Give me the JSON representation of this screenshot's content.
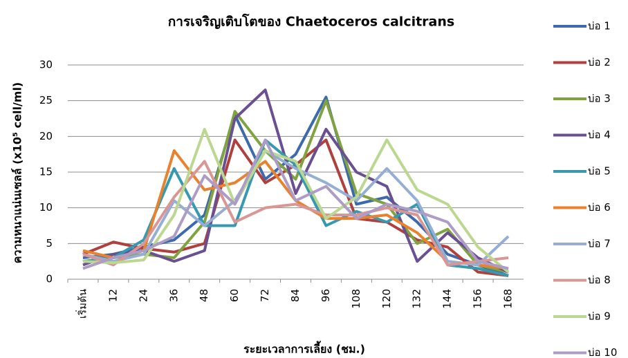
{
  "chart_data": {
    "type": "line",
    "title": "การเจริญเติบโตของ Chaetoceros calcitrans",
    "x_label": "ระยะเวลาการเลี้ยง (ชม.)",
    "y_label": "ความหนาแน่นเซลล์ (x10⁵ cell/ml)",
    "categories": [
      "เริ่มต้น",
      "12",
      "24",
      "36",
      "48",
      "60",
      "72",
      "84",
      "96",
      "108",
      "120",
      "132",
      "144",
      "156",
      "168"
    ],
    "ylim": [
      0,
      30
    ],
    "yticks": [
      0,
      5,
      10,
      15,
      20,
      25,
      30
    ],
    "grid": true,
    "legend": "right",
    "series": [
      {
        "name": "บ่อ 1",
        "color": "#3d6aad",
        "values": [
          3,
          3.5,
          4.5,
          5.5,
          9,
          23,
          14,
          17.5,
          25.5,
          10.5,
          11.5,
          8,
          3.5,
          2,
          0.5
        ]
      },
      {
        "name": "บ่อ 2",
        "color": "#b0403d",
        "values": [
          3.5,
          5.2,
          4.3,
          3.8,
          5,
          19.5,
          13.5,
          16,
          19.5,
          8.5,
          8,
          5.5,
          4.5,
          1,
          0.5
        ]
      },
      {
        "name": "บ่อ 3",
        "color": "#80a33f",
        "values": [
          2.5,
          3,
          3.5,
          3,
          8,
          23.5,
          18,
          14,
          25,
          12,
          10.5,
          5,
          7,
          2,
          1
        ]
      },
      {
        "name": "บ่อ 4",
        "color": "#6a4f91",
        "values": [
          2,
          3.5,
          4,
          2.5,
          4,
          22.5,
          26.5,
          12,
          21,
          15,
          13,
          2.5,
          6.5,
          3,
          1
        ]
      },
      {
        "name": "บ่อ 5",
        "color": "#3799b0",
        "values": [
          2.5,
          3,
          5.5,
          15.5,
          7.5,
          7.5,
          19.5,
          16,
          7.5,
          9.5,
          8,
          10.5,
          2,
          1.5,
          0.5
        ]
      },
      {
        "name": "บ่อ 6",
        "color": "#e8822e",
        "values": [
          4,
          3,
          4,
          18,
          12.5,
          13.5,
          16.5,
          11,
          8.5,
          8.5,
          9,
          6.5,
          2.5,
          2,
          1.5
        ]
      },
      {
        "name": "บ่อ 7",
        "color": "#94aed4",
        "values": [
          3.5,
          2.5,
          3.5,
          11,
          7.5,
          11,
          18,
          15.5,
          13.5,
          11,
          15.5,
          11,
          2.5,
          2,
          6
        ]
      },
      {
        "name": "บ่อ 8",
        "color": "#d99694",
        "values": [
          3.5,
          2,
          5,
          11.5,
          16.5,
          8,
          10,
          10.5,
          9,
          9,
          10,
          9,
          2,
          2.5,
          3
        ]
      },
      {
        "name": "บ่อ 9",
        "color": "#bcd78f",
        "values": [
          2.5,
          2.3,
          2.7,
          9,
          21,
          10.5,
          18,
          16.5,
          8.5,
          11.5,
          19.5,
          12.5,
          10.5,
          4.5,
          1
        ]
      },
      {
        "name": "บ่อ 10",
        "color": "#ad9cc6",
        "values": [
          1.5,
          3,
          4,
          6,
          14.5,
          10.5,
          19.5,
          11,
          13,
          8.5,
          10.5,
          9.5,
          8,
          2.5,
          1.5
        ]
      }
    ]
  }
}
